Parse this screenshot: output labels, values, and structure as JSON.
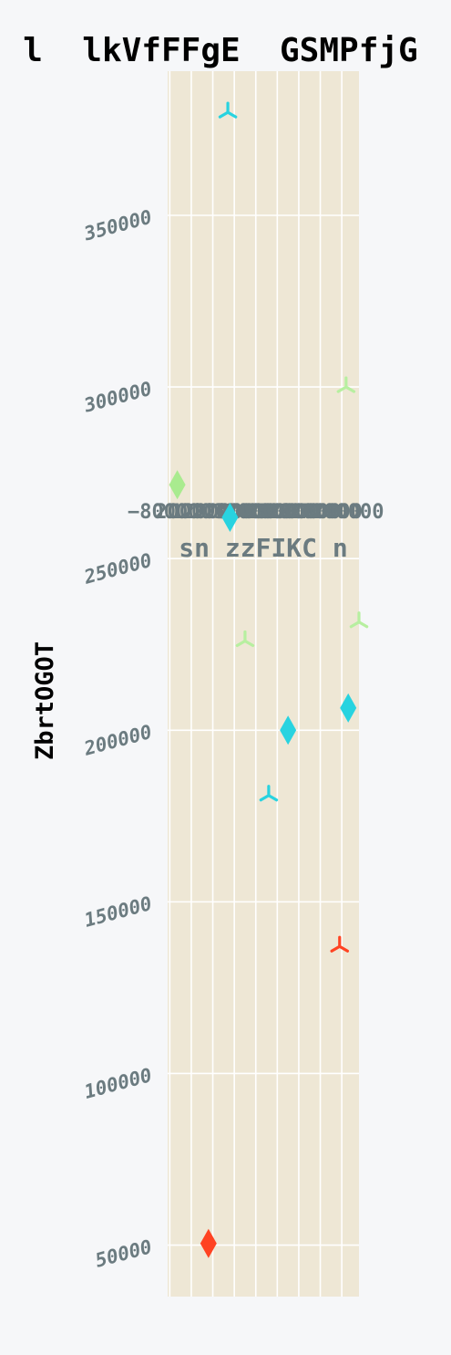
{
  "chart_data": {
    "type": "scatter",
    "title": "l  lkVfFFgE  GSMPfjG",
    "xlabel": "sn zzFIKC n",
    "ylabel": "ZbrtOGOT",
    "xlim": [
      -900000,
      8000000
    ],
    "ylim": [
      35000,
      392000
    ],
    "x_ticks": [
      -800000,
      200000,
      1200000,
      2200000,
      3200000,
      4200000,
      5200000,
      6200000,
      7200000
    ],
    "x_tick_labels": [
      "−800000",
      "200000",
      "1200000",
      "2200000",
      "3200000",
      "4200000",
      "5200000",
      "6200000",
      "7200000"
    ],
    "y_ticks": [
      50000,
      100000,
      150000,
      200000,
      250000,
      300000,
      350000
    ],
    "y_tick_labels": [
      "50000",
      "100000",
      "150000",
      "200000",
      "250000",
      "300000",
      "350000"
    ],
    "grid": true,
    "background_color": "#eee7d5",
    "page_color": "#f6f7f9",
    "series": [
      {
        "marker": "diamond",
        "color": "#28d3e0",
        "points": [
          {
            "x": 2000000,
            "y": 262000
          },
          {
            "x": 4700000,
            "y": 200000
          },
          {
            "x": 7500000,
            "y": 206500
          }
        ]
      },
      {
        "marker": "tri",
        "color": "#28d3e0",
        "points": [
          {
            "x": 1900000,
            "y": 380000
          },
          {
            "x": 3800000,
            "y": 181000
          }
        ]
      },
      {
        "marker": "diamond",
        "color": "#a9eb8f",
        "points": [
          {
            "x": -450000,
            "y": 271500
          }
        ]
      },
      {
        "marker": "tri",
        "color": "#b7efa0",
        "points": [
          {
            "x": 2700000,
            "y": 226000
          },
          {
            "x": 7400000,
            "y": 300000
          },
          {
            "x": 8000000,
            "y": 231500
          }
        ]
      },
      {
        "marker": "diamond",
        "color": "#ff4322",
        "points": [
          {
            "x": 1000000,
            "y": 50500
          }
        ]
      },
      {
        "marker": "tri",
        "color": "#ff4322",
        "points": [
          {
            "x": 7100000,
            "y": 137000
          }
        ]
      }
    ]
  }
}
